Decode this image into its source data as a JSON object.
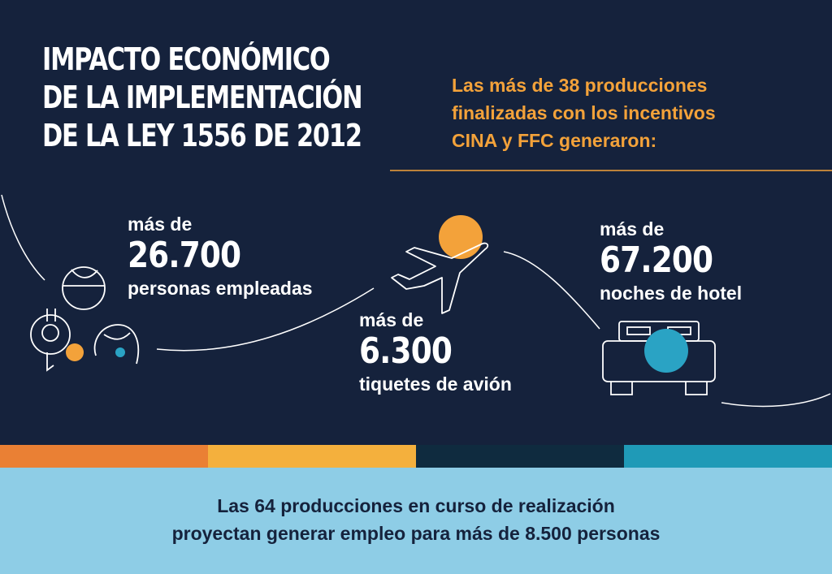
{
  "title_lines": [
    "IMPACTO ECONÓMICO",
    "DE LA IMPLEMENTACIÓN",
    "DE LA LEY 1556 DE 2012"
  ],
  "intro_lines": [
    "Las más de 38 producciones",
    "finalizadas con los incentivos",
    "CINA y FFC generaron:"
  ],
  "stats": {
    "employees": {
      "prefix": "más de",
      "value": "26.700",
      "label": "personas empleadas",
      "icon": "people-icon"
    },
    "tickets": {
      "prefix": "más de",
      "value": "6.300",
      "label": "tiquetes de avión",
      "icon": "airplane-icon"
    },
    "hotel": {
      "prefix": "más de",
      "value": "67.200",
      "label": "noches de hotel",
      "icon": "bed-icon"
    }
  },
  "footer_lines": [
    "Las 64 producciones en curso de realización",
    "proyectan generar empleo para más de 8.500 personas"
  ],
  "colors": {
    "background": "#15223c",
    "accent_orange": "#f3a23a",
    "accent_blue": "#2aa3c4",
    "footer_background": "#8ecde6",
    "stripes": [
      "#ea8034",
      "#f4b03d",
      "#0f2b3f",
      "#1f9ab7"
    ]
  }
}
